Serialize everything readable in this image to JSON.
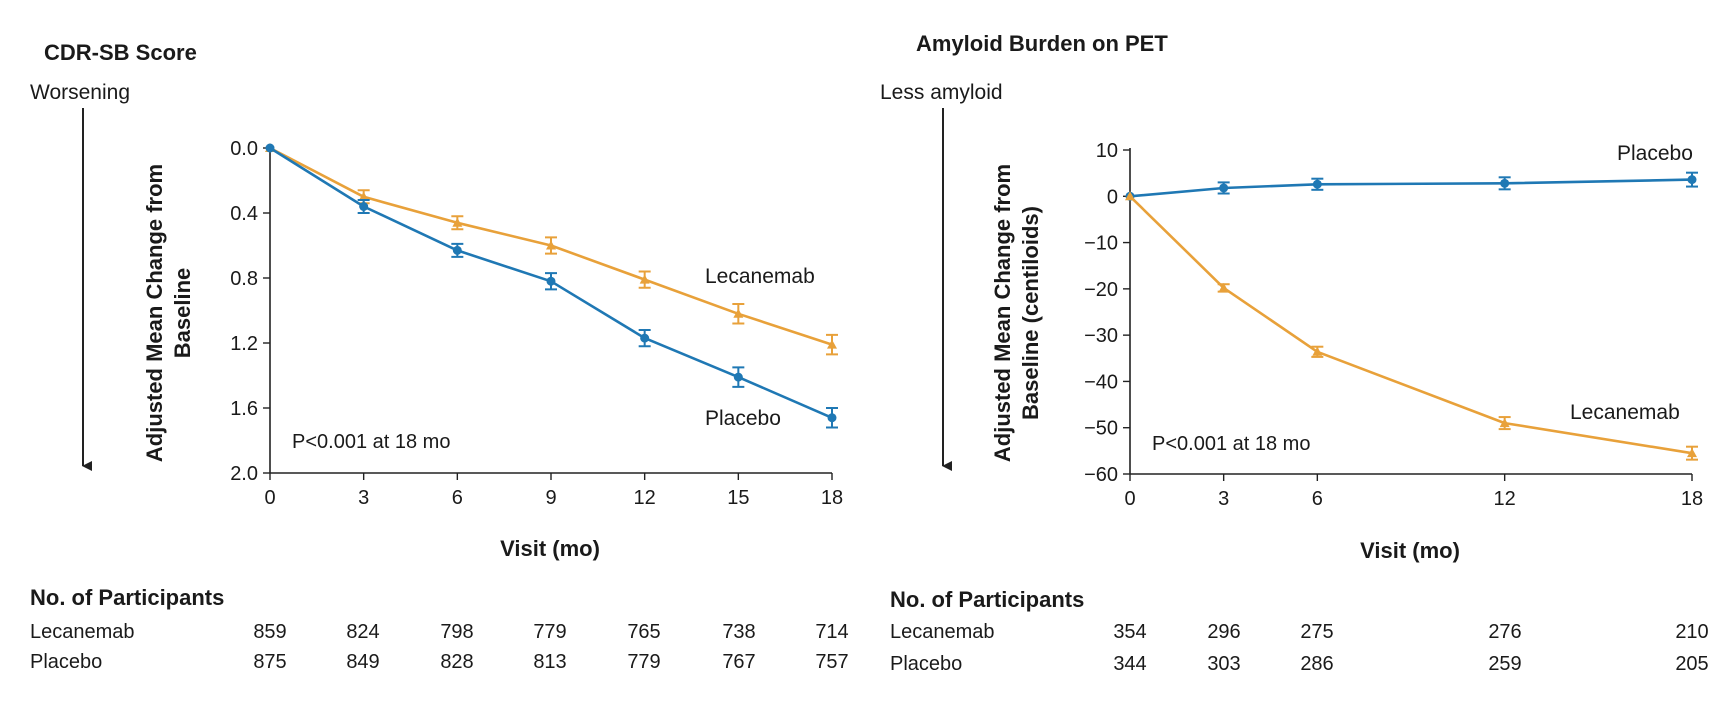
{
  "colors": {
    "lecanemab": "#e8a13a",
    "placebo": "#1f78b4",
    "axis": "#222222"
  },
  "figure": {
    "numbers_header": "No. of Participants",
    "x_label": "Visit (mo)"
  },
  "chart_data": [
    {
      "type": "line",
      "title": "CDR-SB Score",
      "direction_label": "Worsening",
      "ylabel": "Adjusted Mean Change from Baseline",
      "xlabel": "Visit (mo)",
      "x": [
        0,
        3,
        6,
        9,
        12,
        15,
        18
      ],
      "xticks": [
        "0",
        "3",
        "6",
        "9",
        "12",
        "15",
        "18"
      ],
      "xlim": [
        0,
        18
      ],
      "ylim": [
        0.0,
        2.0
      ],
      "y_inverted": true,
      "yticks": [
        "0.0",
        "0.4",
        "0.8",
        "1.2",
        "1.6",
        "2.0"
      ],
      "p_value": "P<0.001 at 18 mo",
      "series": [
        {
          "name": "Lecanemab",
          "values": [
            0.0,
            0.3,
            0.46,
            0.6,
            0.81,
            1.02,
            1.21
          ],
          "err": [
            0.0,
            0.04,
            0.04,
            0.05,
            0.05,
            0.06,
            0.06
          ]
        },
        {
          "name": "Placebo",
          "values": [
            0.0,
            0.36,
            0.63,
            0.82,
            1.17,
            1.41,
            1.66
          ],
          "err": [
            0.0,
            0.04,
            0.04,
            0.05,
            0.05,
            0.06,
            0.06
          ]
        }
      ],
      "participants": [
        {
          "group": "Lecanemab",
          "counts": [
            "859",
            "824",
            "798",
            "779",
            "765",
            "738",
            "714"
          ]
        },
        {
          "group": "Placebo",
          "counts": [
            "875",
            "849",
            "828",
            "813",
            "779",
            "767",
            "757"
          ]
        }
      ]
    },
    {
      "type": "line",
      "title": "Amyloid Burden on PET",
      "direction_label": "Less amyloid",
      "ylabel": "Adjusted Mean Change from Baseline (centiloids)",
      "xlabel": "Visit (mo)",
      "x": [
        0,
        3,
        6,
        12,
        18
      ],
      "xticks": [
        "0",
        "3",
        "6",
        "12",
        "18"
      ],
      "xlim": [
        0,
        18
      ],
      "ylim": [
        -60,
        10
      ],
      "y_inverted": false,
      "yticks": [
        "10",
        "0",
        "−10",
        "−20",
        "−30",
        "−40",
        "−50",
        "−60"
      ],
      "p_value": "P<0.001 at 18 mo",
      "series": [
        {
          "name": "Placebo",
          "values": [
            0.0,
            1.8,
            2.6,
            2.8,
            3.6
          ],
          "err": [
            0.0,
            1.2,
            1.2,
            1.3,
            1.5
          ]
        },
        {
          "name": "Lecanemab",
          "values": [
            0.0,
            -19.8,
            -33.6,
            -49.0,
            -55.5
          ],
          "err": [
            0.0,
            0.8,
            1.1,
            1.3,
            1.4
          ]
        }
      ],
      "participants": [
        {
          "group": "Lecanemab",
          "counts": [
            "354",
            "296",
            "275",
            "276",
            "210"
          ]
        },
        {
          "group": "Placebo",
          "counts": [
            "344",
            "303",
            "286",
            "259",
            "205"
          ]
        }
      ]
    }
  ]
}
